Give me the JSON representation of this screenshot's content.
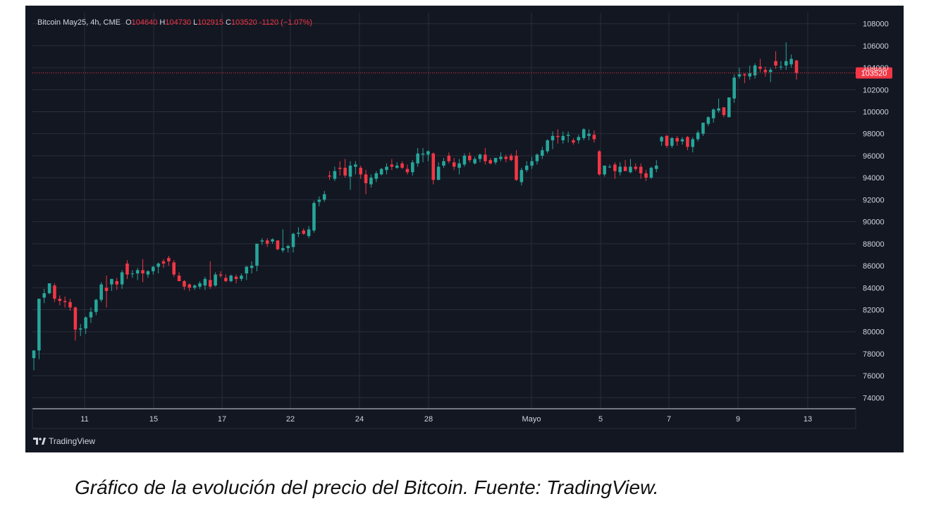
{
  "legend": {
    "symbol": "Bitcoin May25, 4h, CME",
    "open_label": "O",
    "open": "104640",
    "high_label": "H",
    "high": "104730",
    "low_label": "L",
    "low": "102915",
    "close_label": "C",
    "close": "103520",
    "change": "-1120 (−1.07%)"
  },
  "brand": {
    "text": "TradingView",
    "icon": "tradingview-logo-icon"
  },
  "caption": "Gráfico de la evolución del precio del Bitcoin. Fuente: TradingView.",
  "colors": {
    "up": "#26a69a",
    "down": "#f23645",
    "background": "#131722",
    "grid": "#2a2e39"
  },
  "chart_data": {
    "type": "candlestick",
    "x_ticks": [
      "11",
      "15",
      "17",
      "22",
      "24",
      "28",
      "Mayo",
      "5",
      "7",
      "9",
      "13"
    ],
    "y_ticks": [
      74000,
      76000,
      78000,
      80000,
      82000,
      84000,
      86000,
      88000,
      90000,
      92000,
      94000,
      96000,
      98000,
      100000,
      102000,
      104000,
      106000,
      108000
    ],
    "ylim": [
      73000,
      109000
    ],
    "last_price": 103520,
    "last_price_label": "103520",
    "grid": true,
    "candles": [
      [
        77600,
        78300,
        76500,
        78300
      ],
      [
        78300,
        83000,
        77500,
        83000
      ],
      [
        83100,
        83900,
        82600,
        83500
      ],
      [
        83500,
        84400,
        83400,
        84400
      ],
      [
        84200,
        84400,
        82700,
        83000
      ],
      [
        83000,
        83300,
        82400,
        82800
      ],
      [
        82800,
        83200,
        82200,
        82700
      ],
      [
        82700,
        83000,
        81900,
        82200
      ],
      [
        82200,
        82300,
        79200,
        80200
      ],
      [
        80200,
        80700,
        79600,
        80300
      ],
      [
        80300,
        81400,
        79800,
        81300
      ],
      [
        81300,
        82200,
        80800,
        81800
      ],
      [
        81800,
        83000,
        81500,
        82900
      ],
      [
        82900,
        84500,
        82700,
        84300
      ],
      [
        84000,
        85100,
        82200,
        83700
      ],
      [
        84300,
        84800,
        83700,
        84800
      ],
      [
        84600,
        84900,
        83800,
        84300
      ],
      [
        84300,
        85600,
        83900,
        85400
      ],
      [
        86200,
        86500,
        84800,
        85200
      ],
      [
        85300,
        85600,
        84900,
        85300
      ],
      [
        85300,
        85800,
        84700,
        85600
      ],
      [
        85600,
        86600,
        84500,
        85300
      ],
      [
        85200,
        85600,
        84900,
        85500
      ],
      [
        85500,
        86000,
        85200,
        85900
      ],
      [
        85900,
        86300,
        85300,
        86200
      ],
      [
        86400,
        86600,
        85800,
        86200
      ],
      [
        86700,
        86900,
        86000,
        86400
      ],
      [
        86300,
        86500,
        85000,
        85200
      ],
      [
        85100,
        85400,
        84600,
        84600
      ],
      [
        84600,
        84700,
        83800,
        84100
      ],
      [
        84300,
        84400,
        83700,
        84000
      ],
      [
        84000,
        84300,
        83800,
        84200
      ],
      [
        84100,
        84600,
        83900,
        84400
      ],
      [
        84200,
        85000,
        83800,
        84800
      ],
      [
        84700,
        86400,
        83900,
        84100
      ],
      [
        84200,
        85400,
        84100,
        85200
      ],
      [
        85200,
        85500,
        84900,
        85100
      ],
      [
        84900,
        85200,
        84500,
        84600
      ],
      [
        84600,
        85200,
        84500,
        85100
      ],
      [
        85000,
        85200,
        84400,
        84800
      ],
      [
        84800,
        85300,
        84600,
        85100
      ],
      [
        85300,
        86000,
        84700,
        85900
      ],
      [
        85800,
        86400,
        85300,
        86000
      ],
      [
        86000,
        88000,
        85500,
        88000
      ],
      [
        88200,
        88500,
        87900,
        88300
      ],
      [
        88300,
        88500,
        87700,
        88000
      ],
      [
        88200,
        88500,
        88000,
        88400
      ],
      [
        88300,
        88300,
        87400,
        87500
      ],
      [
        87400,
        89300,
        87200,
        87600
      ],
      [
        87600,
        87900,
        87200,
        87800
      ],
      [
        87700,
        89000,
        87200,
        88900
      ],
      [
        88900,
        89500,
        88600,
        89000
      ],
      [
        89200,
        89400,
        88800,
        88900
      ],
      [
        88700,
        89600,
        88500,
        89300
      ],
      [
        89200,
        91900,
        89000,
        91700
      ],
      [
        91800,
        92300,
        91400,
        92000
      ],
      [
        92000,
        92800,
        91800,
        92500
      ],
      [
        94200,
        94600,
        93800,
        94100
      ],
      [
        93900,
        95000,
        93700,
        94600
      ],
      [
        94900,
        95500,
        94200,
        94800
      ],
      [
        94900,
        95700,
        94000,
        94200
      ],
      [
        94100,
        95500,
        92900,
        95100
      ],
      [
        95000,
        95500,
        94300,
        95200
      ],
      [
        94900,
        95100,
        93900,
        94300
      ],
      [
        94300,
        94700,
        92500,
        93500
      ],
      [
        93400,
        94300,
        93100,
        94000
      ],
      [
        93900,
        94600,
        93600,
        94400
      ],
      [
        94300,
        94900,
        94200,
        94800
      ],
      [
        94700,
        95300,
        94300,
        95000
      ],
      [
        95200,
        95700,
        94700,
        95000
      ],
      [
        94900,
        95400,
        94800,
        95100
      ],
      [
        95300,
        95500,
        94800,
        94900
      ],
      [
        94800,
        95200,
        94300,
        94500
      ],
      [
        94500,
        95600,
        94200,
        95400
      ],
      [
        95300,
        96700,
        95000,
        96200
      ],
      [
        96100,
        96700,
        95400,
        96200
      ],
      [
        96100,
        96500,
        95500,
        96400
      ],
      [
        96200,
        96300,
        93400,
        93800
      ],
      [
        93800,
        95400,
        93800,
        95000
      ],
      [
        95100,
        95800,
        94900,
        95500
      ],
      [
        96000,
        96300,
        95300,
        95500
      ],
      [
        95400,
        95800,
        94700,
        95000
      ],
      [
        94900,
        95700,
        94300,
        95300
      ],
      [
        95200,
        96200,
        95000,
        96000
      ],
      [
        96000,
        96300,
        95400,
        95600
      ],
      [
        95300,
        95900,
        95200,
        95700
      ],
      [
        95700,
        96200,
        95400,
        96100
      ],
      [
        96100,
        96700,
        95200,
        95500
      ],
      [
        95600,
        95800,
        95200,
        95300
      ],
      [
        95400,
        95800,
        95200,
        95800
      ],
      [
        95700,
        96300,
        95500,
        95900
      ],
      [
        95900,
        96100,
        95400,
        95700
      ],
      [
        96000,
        96200,
        95500,
        95600
      ],
      [
        96000,
        96500,
        93700,
        93800
      ],
      [
        93600,
        94900,
        93300,
        94700
      ],
      [
        94700,
        95500,
        94500,
        95100
      ],
      [
        95100,
        95900,
        94800,
        95500
      ],
      [
        95500,
        96200,
        95200,
        96100
      ],
      [
        96000,
        96800,
        95700,
        96500
      ],
      [
        96400,
        97500,
        96200,
        97400
      ],
      [
        97400,
        98200,
        96600,
        97800
      ],
      [
        97800,
        98400,
        97100,
        97700
      ],
      [
        97400,
        98200,
        97100,
        97800
      ],
      [
        97800,
        98200,
        97200,
        97900
      ],
      [
        97400,
        97600,
        97000,
        97200
      ],
      [
        97400,
        97900,
        97100,
        97700
      ],
      [
        97600,
        98500,
        97400,
        98400
      ],
      [
        97800,
        98400,
        97400,
        98000
      ],
      [
        97900,
        98300,
        97200,
        97500
      ],
      [
        96400,
        96500,
        94200,
        94300
      ],
      [
        94300,
        95100,
        94100,
        95100
      ],
      [
        95000,
        95200,
        94900,
        95000
      ],
      [
        95200,
        95400,
        93900,
        94600
      ],
      [
        94500,
        95400,
        94200,
        95000
      ],
      [
        95000,
        95600,
        94700,
        94600
      ],
      [
        94500,
        95700,
        94400,
        95000
      ],
      [
        95000,
        95300,
        94600,
        94800
      ],
      [
        95000,
        95300,
        93900,
        94400
      ],
      [
        94400,
        94700,
        93700,
        94000
      ],
      [
        94000,
        95000,
        93900,
        94900
      ],
      [
        94800,
        95600,
        94500,
        95100
      ],
      [
        97300,
        97800,
        96900,
        97700
      ],
      [
        97800,
        97900,
        96700,
        96900
      ],
      [
        96900,
        97700,
        96700,
        97600
      ],
      [
        97600,
        97800,
        96900,
        97300
      ],
      [
        97300,
        97700,
        97000,
        97500
      ],
      [
        97700,
        97800,
        96500,
        96800
      ],
      [
        96800,
        97700,
        96300,
        97500
      ],
      [
        97500,
        98300,
        97300,
        98100
      ],
      [
        98000,
        99000,
        97800,
        99000
      ],
      [
        98900,
        99600,
        98700,
        99500
      ],
      [
        99400,
        100300,
        99000,
        100200
      ],
      [
        100100,
        101200,
        99900,
        100300
      ],
      [
        100400,
        100400,
        99500,
        99700
      ],
      [
        99500,
        101300,
        99500,
        101300
      ],
      [
        101200,
        103400,
        100800,
        103100
      ],
      [
        103200,
        104000,
        103000,
        103400
      ],
      [
        103400,
        103500,
        102600,
        103300
      ],
      [
        103200,
        104200,
        102900,
        103500
      ],
      [
        103300,
        104400,
        103000,
        104200
      ],
      [
        104100,
        104800,
        103600,
        103900
      ],
      [
        103800,
        104100,
        103200,
        103600
      ],
      [
        103600,
        104000,
        102700,
        103800
      ],
      [
        104600,
        105500,
        103900,
        104200
      ],
      [
        104100,
        104600,
        103800,
        104100
      ],
      [
        104200,
        106300,
        103800,
        104600
      ],
      [
        104300,
        105200,
        104000,
        104800
      ],
      [
        104640,
        104730,
        102915,
        103520
      ]
    ]
  }
}
